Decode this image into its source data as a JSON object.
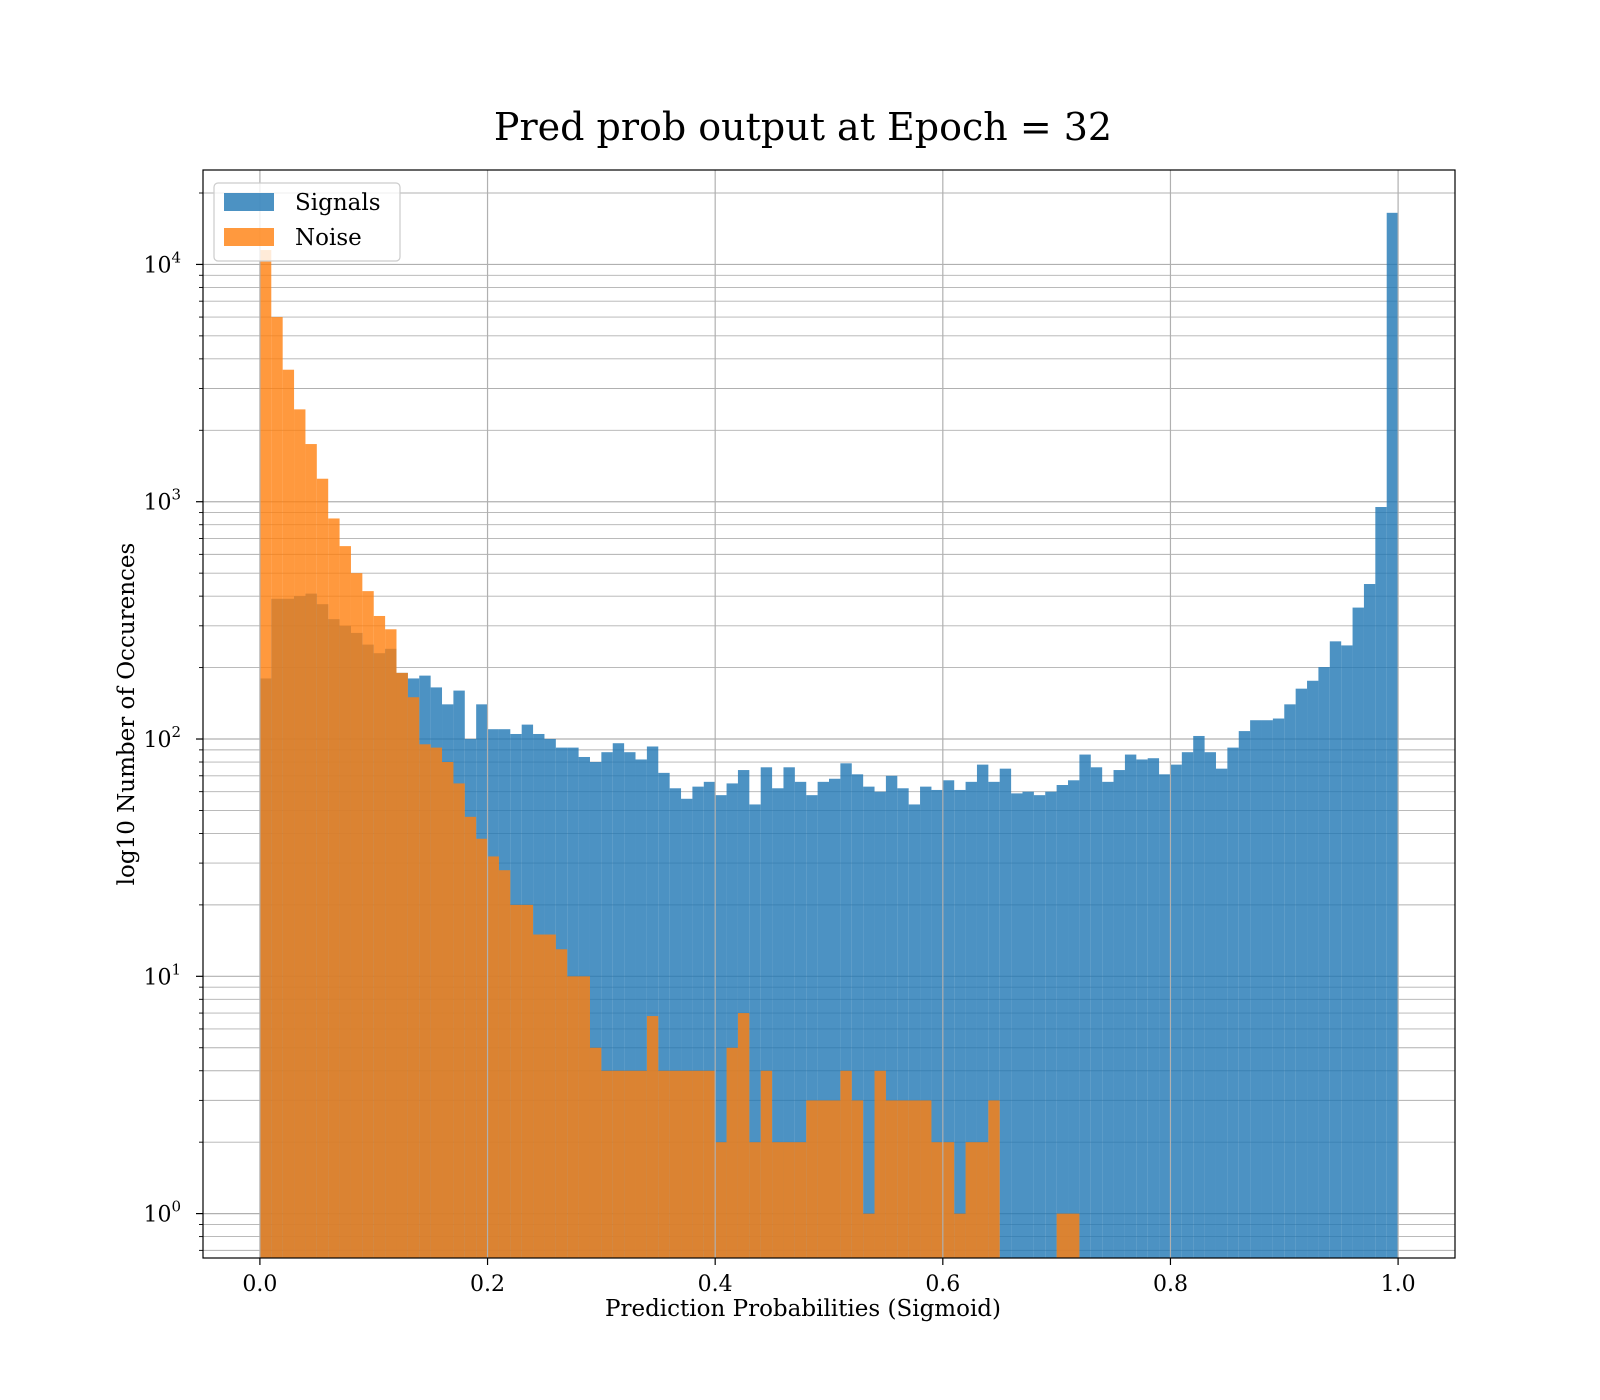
{
  "chart_data": {
    "type": "histogram",
    "title": "Pred prob output at Epoch = 32",
    "xlabel": "Prediction Probabilities (Sigmoid)",
    "ylabel": "log10 Number of Occurences",
    "xlim": [
      -0.05,
      1.05
    ],
    "ylim": [
      0.65,
      25000
    ],
    "yscale": "log",
    "grid": true,
    "legend_position": "top-left",
    "x_ticks": [
      "0.0",
      "0.2",
      "0.4",
      "0.6",
      "0.8",
      "1.0"
    ],
    "y_ticks": [
      {
        "base": "10",
        "exp": "0",
        "value": 1
      },
      {
        "base": "10",
        "exp": "1",
        "value": 10
      },
      {
        "base": "10",
        "exp": "2",
        "value": 100
      },
      {
        "base": "10",
        "exp": "3",
        "value": 1000
      },
      {
        "base": "10",
        "exp": "4",
        "value": 10000
      }
    ],
    "bins": {
      "start": 0.0,
      "end": 1.0,
      "count": 100
    },
    "series": [
      {
        "name": "Signals",
        "color": "#1f77b4",
        "values": [
          180,
          390,
          390,
          400,
          410,
          370,
          320,
          300,
          280,
          250,
          230,
          240,
          190,
          180,
          185,
          165,
          140,
          160,
          100,
          140,
          110,
          110,
          105,
          115,
          105,
          100,
          92,
          92,
          84,
          80,
          88,
          96,
          88,
          82,
          93,
          72,
          62,
          56,
          63,
          66,
          58,
          65,
          74,
          53,
          76,
          62,
          76,
          66,
          58,
          66,
          68,
          79,
          71,
          63,
          60,
          70,
          62,
          53,
          63,
          61,
          67,
          61,
          66,
          78,
          66,
          75,
          59,
          60,
          58,
          60,
          64,
          67,
          86,
          76,
          66,
          74,
          86,
          82,
          83,
          71,
          78,
          88,
          103,
          88,
          75,
          92,
          108,
          120,
          120,
          122,
          140,
          163,
          176,
          201,
          258,
          248,
          358,
          450,
          950,
          16500
        ]
      },
      {
        "name": "Noise",
        "color": "#ff7f0e",
        "values": [
          11500,
          6000,
          3600,
          2450,
          1750,
          1250,
          850,
          650,
          500,
          420,
          330,
          290,
          190,
          150,
          95,
          92,
          80,
          65,
          47,
          38,
          32,
          28,
          20,
          20,
          15,
          15,
          13,
          10,
          10,
          5,
          4,
          4,
          4,
          4,
          6.8,
          4,
          4,
          4,
          4,
          4,
          2,
          5,
          7,
          2,
          4,
          2,
          2,
          2,
          3,
          3,
          3,
          4,
          3,
          1,
          4,
          3,
          3,
          3,
          3,
          2,
          2,
          1,
          2,
          2,
          3,
          0.5,
          0.5,
          0.5,
          0.5,
          0.5,
          1,
          1,
          0.5,
          0.5,
          0.5,
          0.5,
          0.5,
          0.5,
          0.5,
          0.5,
          0.5,
          0.5,
          0.5,
          0.5,
          0.5,
          0.5,
          0.5,
          0.5,
          0.5,
          0.5,
          0.5,
          0.5,
          0.5,
          0.5,
          0.5,
          0.5,
          0.5,
          0.5,
          0.5,
          0.5
        ]
      }
    ]
  }
}
